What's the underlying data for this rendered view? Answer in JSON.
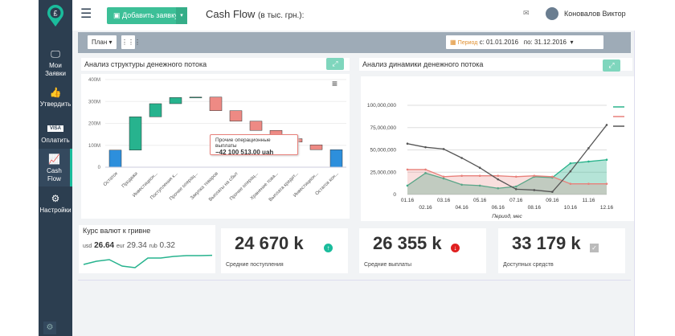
{
  "sidebar": {
    "items": [
      {
        "label": "Мои Заявки",
        "icon": "monitor-icon"
      },
      {
        "label": "Утвердить",
        "icon": "thumbs-up-icon"
      },
      {
        "label": "Оплатить",
        "icon": "visa-icon"
      },
      {
        "label": "Cash Flow",
        "icon": "chart-icon",
        "active": true
      },
      {
        "label": "Настройки",
        "icon": "gear-icon"
      }
    ],
    "logo_glyph": "£",
    "visa": "VISA"
  },
  "header": {
    "add_button": "Добавить заявку",
    "title": "Cash Flow",
    "title_suffix": "(в тыс. грн.):",
    "user": "Коновалов Виктор"
  },
  "toolbar": {
    "plan": "План",
    "period_label": "Период",
    "from": "с: 01.01.2016",
    "to": "по: 31.12.2016"
  },
  "panels": {
    "structure_title": "Анализ структуры денежного потока",
    "dynamics_title": "Анализ динамики денежного потока"
  },
  "tooltip": {
    "label": "Прочие операционные выплаты",
    "value": "−42 100 513.00 uah"
  },
  "chart_data": [
    {
      "type": "waterfall",
      "title": "Анализ структуры денежного потока",
      "yticks": [
        "0",
        "100M",
        "200M",
        "300M",
        "400M"
      ],
      "ylim": [
        0,
        400
      ],
      "categories": [
        "Остаток",
        "Продажи",
        "Инвестицион...",
        "Поступления к...",
        "Прочие операц...",
        "Закупка товаров",
        "Выплаты на сбыт",
        "Прочие операц...",
        "Хранение това...",
        "Выплата кредит...",
        "Инвестицион...",
        "Остаток кон..."
      ],
      "bars": [
        [
          0,
          78,
          "total"
        ],
        [
          78,
          230,
          "up"
        ],
        [
          230,
          290,
          "up"
        ],
        [
          290,
          318,
          "up"
        ],
        [
          318,
          320,
          "up"
        ],
        [
          320,
          258,
          "down"
        ],
        [
          258,
          210,
          "down"
        ],
        [
          210,
          168,
          "down"
        ],
        [
          168,
          140,
          "down"
        ],
        [
          130,
          115,
          "down"
        ],
        [
          102,
          80,
          "down"
        ],
        [
          0,
          80,
          "total"
        ]
      ]
    },
    {
      "type": "area",
      "title": "Анализ динамики денежного потока",
      "xlabel": "Период, мес",
      "ylim": [
        0,
        100000000
      ],
      "yticks": [
        "0",
        "25,000,000",
        "50,000,000",
        "75,000,000",
        "100,000,000"
      ],
      "x": [
        "01.16",
        "02.16",
        "03.16",
        "04.16",
        "05.16",
        "06.16",
        "07.16",
        "08.16",
        "09.16",
        "10.16",
        "11.16",
        "12.16"
      ],
      "series": [
        {
          "name": "",
          "color": "#2ab38c",
          "values": [
            10,
            24,
            18,
            11,
            10,
            7,
            9,
            20,
            19,
            35,
            37,
            39
          ]
        },
        {
          "name": "",
          "color": "#e8807a",
          "values": [
            28,
            28,
            20,
            21,
            21,
            21,
            20,
            21,
            20,
            12,
            12,
            12
          ]
        },
        {
          "name": "",
          "color": "#555555",
          "values": [
            57,
            53,
            51,
            41,
            30,
            17,
            6,
            5,
            3,
            26,
            52,
            78
          ]
        }
      ],
      "units": "millions"
    }
  ],
  "rates": {
    "title": "Курс валют к гривне",
    "usd_label": "usd",
    "usd": "26.64",
    "eur_label": "eur",
    "eur": "29.34",
    "rub_label": "rub",
    "rub": "0.32",
    "spark": [
      3,
      5,
      6,
      2,
      1,
      7,
      7,
      8,
      8.5,
      8.5,
      8.7
    ]
  },
  "stats": [
    {
      "value": "24 670 k",
      "label": "Средние поступления"
    },
    {
      "value": "26 355 k",
      "label": "Средние выплаты"
    },
    {
      "value": "33 179 k",
      "label": "Доступных средств"
    }
  ]
}
